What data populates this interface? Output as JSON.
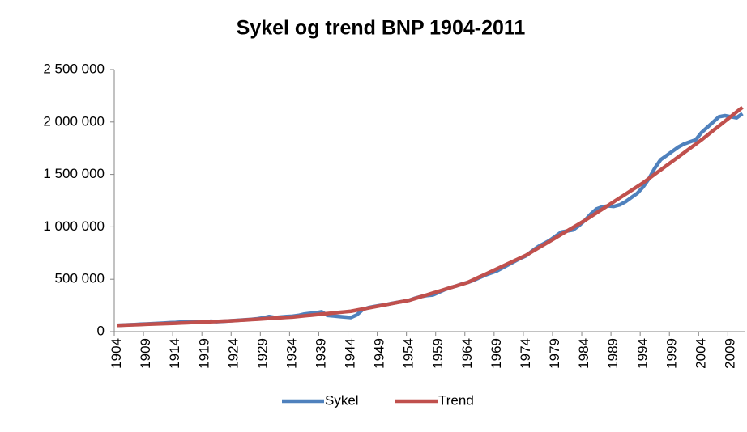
{
  "chart_data": {
    "type": "line",
    "title": "Sykel og trend BNP 1904-2011",
    "categories": [
      "1904",
      null,
      null,
      null,
      null,
      "1909",
      null,
      null,
      null,
      null,
      "1914",
      null,
      null,
      null,
      null,
      "1919",
      null,
      null,
      null,
      null,
      "1924",
      null,
      null,
      null,
      null,
      "1929",
      null,
      null,
      null,
      null,
      "1934",
      null,
      null,
      null,
      null,
      "1939",
      null,
      null,
      null,
      null,
      "1944",
      null,
      null,
      null,
      null,
      "1949",
      null,
      null,
      null,
      null,
      "1954",
      null,
      null,
      null,
      null,
      "1959",
      null,
      null,
      null,
      null,
      "1964",
      null,
      null,
      null,
      null,
      "1969",
      null,
      null,
      null,
      null,
      "1974",
      null,
      null,
      null,
      null,
      "1979",
      null,
      null,
      null,
      null,
      "1984",
      null,
      null,
      null,
      null,
      "1989",
      null,
      null,
      null,
      null,
      "1994",
      null,
      null,
      null,
      null,
      "1999",
      null,
      null,
      null,
      null,
      "2004",
      null,
      null,
      null,
      null,
      "2009",
      null,
      null
    ],
    "series": [
      {
        "name": "Sykel",
        "color": "#4f81bd",
        "values": [
          60000,
          63000,
          66000,
          68000,
          71000,
          73000,
          76000,
          79000,
          82000,
          86000,
          88000,
          92000,
          95000,
          97000,
          90000,
          92000,
          100000,
          95000,
          98000,
          102000,
          106000,
          110000,
          114000,
          118000,
          124000,
          132000,
          145000,
          135000,
          140000,
          145000,
          148000,
          155000,
          168000,
          175000,
          180000,
          190000,
          155000,
          150000,
          145000,
          140000,
          135000,
          160000,
          210000,
          230000,
          240000,
          250000,
          258000,
          270000,
          280000,
          290000,
          300000,
          320000,
          335000,
          345000,
          350000,
          375000,
          400000,
          420000,
          435000,
          455000,
          470000,
          490000,
          515000,
          540000,
          560000,
          580000,
          610000,
          640000,
          670000,
          700000,
          725000,
          770000,
          810000,
          840000,
          870000,
          910000,
          950000,
          960000,
          970000,
          1010000,
          1060000,
          1120000,
          1170000,
          1190000,
          1200000,
          1195000,
          1210000,
          1240000,
          1280000,
          1320000,
          1380000,
          1460000,
          1560000,
          1640000,
          1680000,
          1720000,
          1760000,
          1790000,
          1810000,
          1830000,
          1900000,
          1950000,
          2000000,
          2050000,
          2060000,
          2050000,
          2040000,
          2080000
        ]
      },
      {
        "name": "Trend",
        "color": "#c0504d",
        "values": [
          60000,
          62000,
          64000,
          66000,
          68000,
          70000,
          72000,
          74000,
          76000,
          78000,
          80000,
          82500,
          85000,
          87500,
          90000,
          92500,
          95000,
          97500,
          100000,
          102500,
          105000,
          108500,
          112000,
          115500,
          119000,
          122500,
          126000,
          129500,
          133000,
          136500,
          140000,
          145500,
          151000,
          156500,
          162000,
          167500,
          173000,
          178500,
          184000,
          189500,
          195000,
          205500,
          216000,
          226500,
          237000,
          247500,
          258000,
          268500,
          279000,
          289500,
          300000,
          317000,
          334000,
          351000,
          368000,
          385000,
          402000,
          419000,
          436000,
          453000,
          470000,
          496000,
          522000,
          548000,
          574000,
          600000,
          626000,
          652000,
          678000,
          704000,
          730000,
          763000,
          796000,
          829000,
          862000,
          895000,
          928000,
          961000,
          994000,
          1027000,
          1060000,
          1096000,
          1132000,
          1168000,
          1204000,
          1240000,
          1276000,
          1312000,
          1348000,
          1384000,
          1420000,
          1461000,
          1502000,
          1543000,
          1584000,
          1625000,
          1666000,
          1707000,
          1748000,
          1789000,
          1830000,
          1874000,
          1919000,
          1963000,
          2007000,
          2051000,
          2096000,
          2140000
        ]
      }
    ],
    "ylim": [
      0,
      2500000
    ],
    "yticks": [
      0,
      {
        "value": 500000,
        "label": "500 000"
      },
      {
        "value": 1000000,
        "label": "1 000 000"
      },
      {
        "value": 1500000,
        "label": "1 500 000"
      },
      {
        "value": 2000000,
        "label": "2 000 000"
      },
      {
        "value": 2500000,
        "label": "2 500 000"
      }
    ],
    "grid": false,
    "legend": "bottom"
  }
}
